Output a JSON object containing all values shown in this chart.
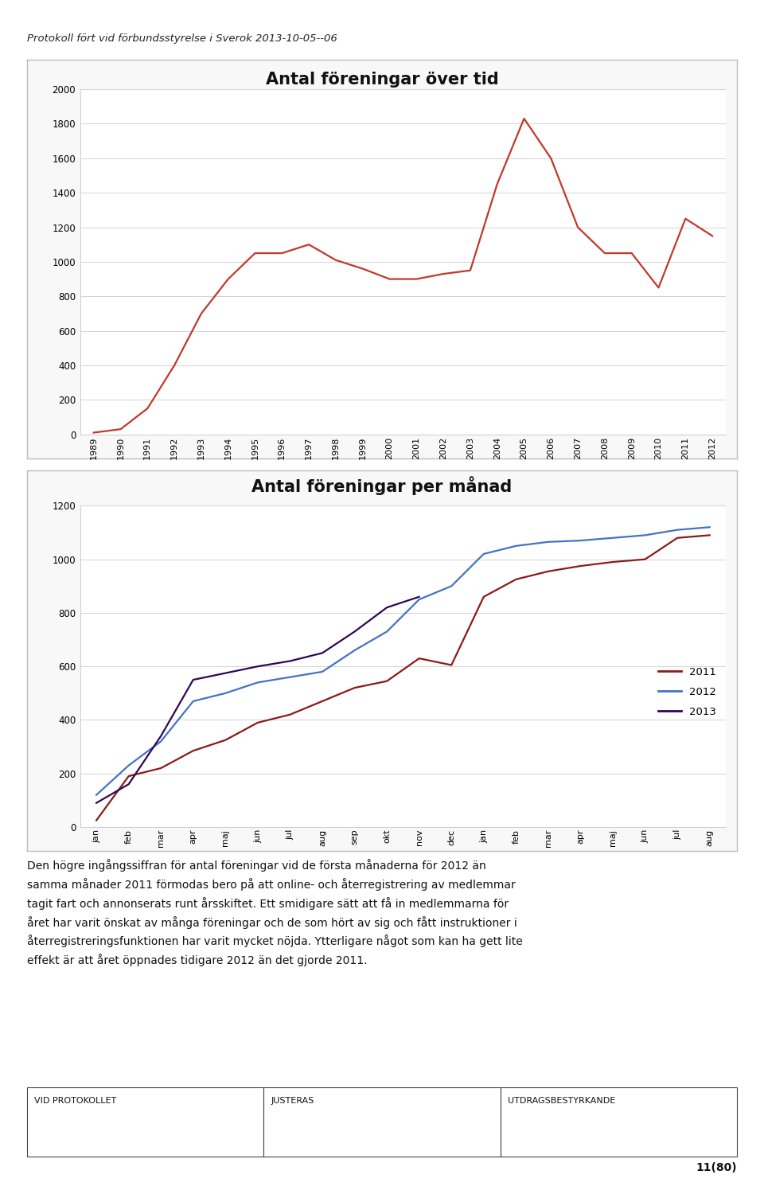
{
  "chart1_title": "Antal föreningar över tid",
  "chart1_years": [
    1989,
    1990,
    1991,
    1992,
    1993,
    1994,
    1995,
    1996,
    1997,
    1998,
    1999,
    2000,
    2001,
    2002,
    2003,
    2004,
    2005,
    2006,
    2007,
    2008,
    2009,
    2010,
    2011,
    2012
  ],
  "chart1_values": [
    10,
    30,
    150,
    400,
    700,
    900,
    1050,
    1050,
    1100,
    1010,
    960,
    900,
    900,
    930,
    950,
    1450,
    1830,
    1600,
    1200,
    1050,
    1050,
    850,
    1250,
    1150
  ],
  "chart1_color": "#c0392b",
  "chart1_ylim": [
    0,
    2000
  ],
  "chart1_yticks": [
    0,
    200,
    400,
    600,
    800,
    1000,
    1200,
    1400,
    1600,
    1800,
    2000
  ],
  "chart2_title": "Antal föreningar per månad",
  "chart2_months": [
    "jan",
    "feb",
    "mar",
    "apr",
    "maj",
    "jun",
    "jul",
    "aug",
    "sep",
    "okt",
    "nov",
    "dec",
    "jan",
    "feb",
    "mar",
    "apr",
    "maj",
    "jun",
    "jul",
    "aug"
  ],
  "chart2_2011": [
    25,
    190,
    220,
    285,
    325,
    390,
    420,
    470,
    520,
    545,
    630,
    605,
    860,
    925,
    955,
    975,
    990,
    1000,
    1080,
    1090
  ],
  "chart2_2012": [
    120,
    230,
    320,
    470,
    500,
    540,
    560,
    580,
    660,
    730,
    850,
    900,
    1020,
    1050,
    1065,
    1070,
    1080,
    1090,
    1110,
    1120
  ],
  "chart2_2013": [
    90,
    160,
    340,
    550,
    575,
    600,
    620,
    650,
    730,
    820,
    860,
    null,
    null,
    null,
    null,
    null,
    null,
    null,
    null,
    null
  ],
  "chart2_color_2011": "#8b1a1a",
  "chart2_color_2012": "#4472c4",
  "chart2_color_2013": "#2e0854",
  "chart2_ylim": [
    0,
    1200
  ],
  "chart2_yticks": [
    0,
    200,
    400,
    600,
    800,
    1000,
    1200
  ],
  "header_text": "Protokoll fört vid förbundsstyrelse i Sverok 2013-10-05--06",
  "body_text": "Den högre ingångssiffran för antal föreningar vid de första månaderna för 2012 än\nsamma månader 2011 förmodas bero på att online- och återregistrering av medlemmar\ntagit fart och annonserats runt årsskiftet. Ett smidigare sätt att få in medlemmarna för\nåret har varit önskat av många föreningar och de som hört av sig och fått instruktioner i\nåterregistreringsfunktionen har varit mycket nöjda. Ytterligare något som kan ha gett lite\neffekt är att året öppnades tidigare 2012 än det gjorde 2011.",
  "footer_col1": "VID PROTOKOLLET",
  "footer_col2": "JUSTERAS",
  "footer_col3": "UTDRAGSBESTYRKANDE",
  "page_num": "11(80)",
  "bg_color": "#ffffff",
  "chart_bg": "#ffffff",
  "border_color": "#aaaaaa",
  "grid_color": "#cccccc"
}
